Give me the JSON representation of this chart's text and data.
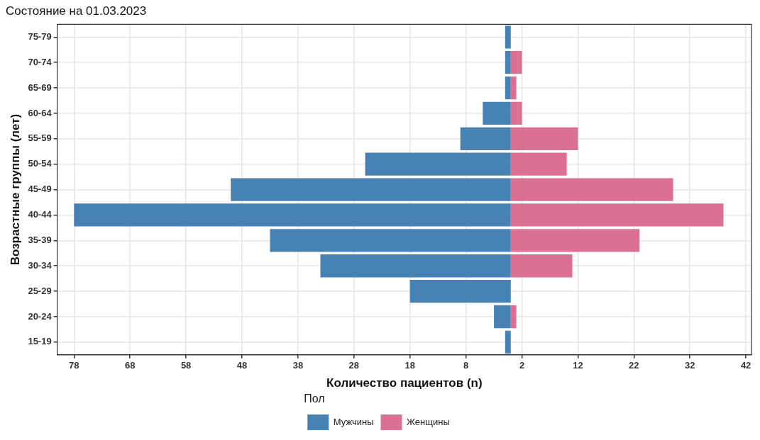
{
  "chart_data": {
    "type": "bar",
    "orientation": "horizontal",
    "stacked": true,
    "title": "Состояние на 01.03.2023",
    "xlabel": "Количество пациентов (n)",
    "ylabel": "Возрастные группы (лет)",
    "legend_title": "Пол",
    "legend": "bottom",
    "grid": true,
    "categories": [
      "75-79",
      "70-74",
      "65-69",
      "60-64",
      "55-59",
      "50-54",
      "45-49",
      "40-44",
      "35-39",
      "30-34",
      "25-29",
      "20-24",
      "15-19"
    ],
    "series": [
      {
        "name": "Мужчины",
        "color": "#4682b4",
        "values": [
          -1,
          -1,
          -1,
          -5,
          -9,
          -26,
          -50,
          -78,
          -43,
          -34,
          -18,
          -3,
          -1
        ]
      },
      {
        "name": "Женщины",
        "color": "#db7093",
        "values": [
          0,
          2,
          1,
          2,
          12,
          10,
          29,
          38,
          23,
          11,
          0,
          1,
          0
        ]
      }
    ],
    "xlim": [
      -81,
      43
    ],
    "xticks": [
      {
        "value": -78,
        "label": "78"
      },
      {
        "value": -68,
        "label": "68"
      },
      {
        "value": -58,
        "label": "58"
      },
      {
        "value": -48,
        "label": "48"
      },
      {
        "value": -38,
        "label": "38"
      },
      {
        "value": -28,
        "label": "28"
      },
      {
        "value": -18,
        "label": "18"
      },
      {
        "value": -8,
        "label": "8"
      },
      2,
      12,
      22,
      32,
      42
    ]
  }
}
